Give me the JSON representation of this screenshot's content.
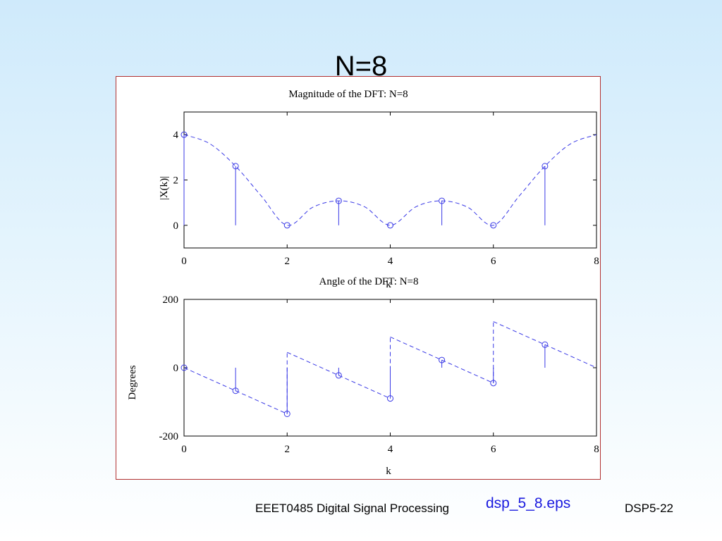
{
  "slide": {
    "title": "N=8",
    "footer_course": "EEET0485 Digital Signal Processing",
    "footer_file": "dsp_5_8.eps",
    "footer_page": "DSP5-22"
  },
  "colors": {
    "series": "#3a3ae6",
    "frame": "#b03030"
  },
  "chart_data": [
    {
      "type": "stem",
      "title": "Magnitude of the DFT: N=8",
      "xlabel": "k",
      "ylabel": "|X(k)|",
      "xlim": [
        0,
        8
      ],
      "ylim": [
        -1,
        5
      ],
      "xticks": [
        0,
        2,
        4,
        6,
        8
      ],
      "yticks": [
        0,
        2,
        4
      ],
      "x": [
        0,
        1,
        2,
        3,
        4,
        5,
        6,
        7
      ],
      "values": [
        4,
        2.61,
        0,
        1.08,
        0,
        1.08,
        0,
        2.61
      ],
      "envelope": {
        "style": "dashed",
        "x": [
          0,
          0.5,
          1,
          1.5,
          2,
          2.5,
          3,
          3.5,
          4,
          4.5,
          5,
          5.5,
          6,
          6.5,
          7,
          7.5,
          8
        ],
        "y": [
          4,
          3.6,
          2.61,
          1.29,
          0,
          0.8,
          1.08,
          0.82,
          0,
          0.82,
          1.08,
          0.8,
          0,
          1.29,
          2.61,
          3.6,
          4
        ]
      }
    },
    {
      "type": "stem",
      "title": "Angle of the DFT: N=8",
      "xlabel": "k",
      "ylabel": "Degrees",
      "xlim": [
        0,
        8
      ],
      "ylim": [
        -200,
        200
      ],
      "xticks": [
        0,
        2,
        4,
        6,
        8
      ],
      "yticks": [
        -200,
        0,
        200
      ],
      "x": [
        0,
        1,
        2,
        3,
        4,
        5,
        6,
        7
      ],
      "values": [
        0,
        -67.5,
        -135,
        -22.5,
        -90,
        22.5,
        -45,
        67.5
      ],
      "envelope": {
        "style": "dashed",
        "segments": [
          {
            "x": [
              0,
              2
            ],
            "y": [
              0,
              -135
            ]
          },
          {
            "x": [
              2,
              2
            ],
            "y": [
              -135,
              45
            ]
          },
          {
            "x": [
              2,
              4
            ],
            "y": [
              45,
              -90
            ]
          },
          {
            "x": [
              4,
              4
            ],
            "y": [
              -90,
              90
            ]
          },
          {
            "x": [
              4,
              6
            ],
            "y": [
              90,
              -45
            ]
          },
          {
            "x": [
              6,
              6
            ],
            "y": [
              -45,
              135
            ]
          },
          {
            "x": [
              6,
              8
            ],
            "y": [
              135,
              0
            ]
          }
        ]
      }
    }
  ]
}
